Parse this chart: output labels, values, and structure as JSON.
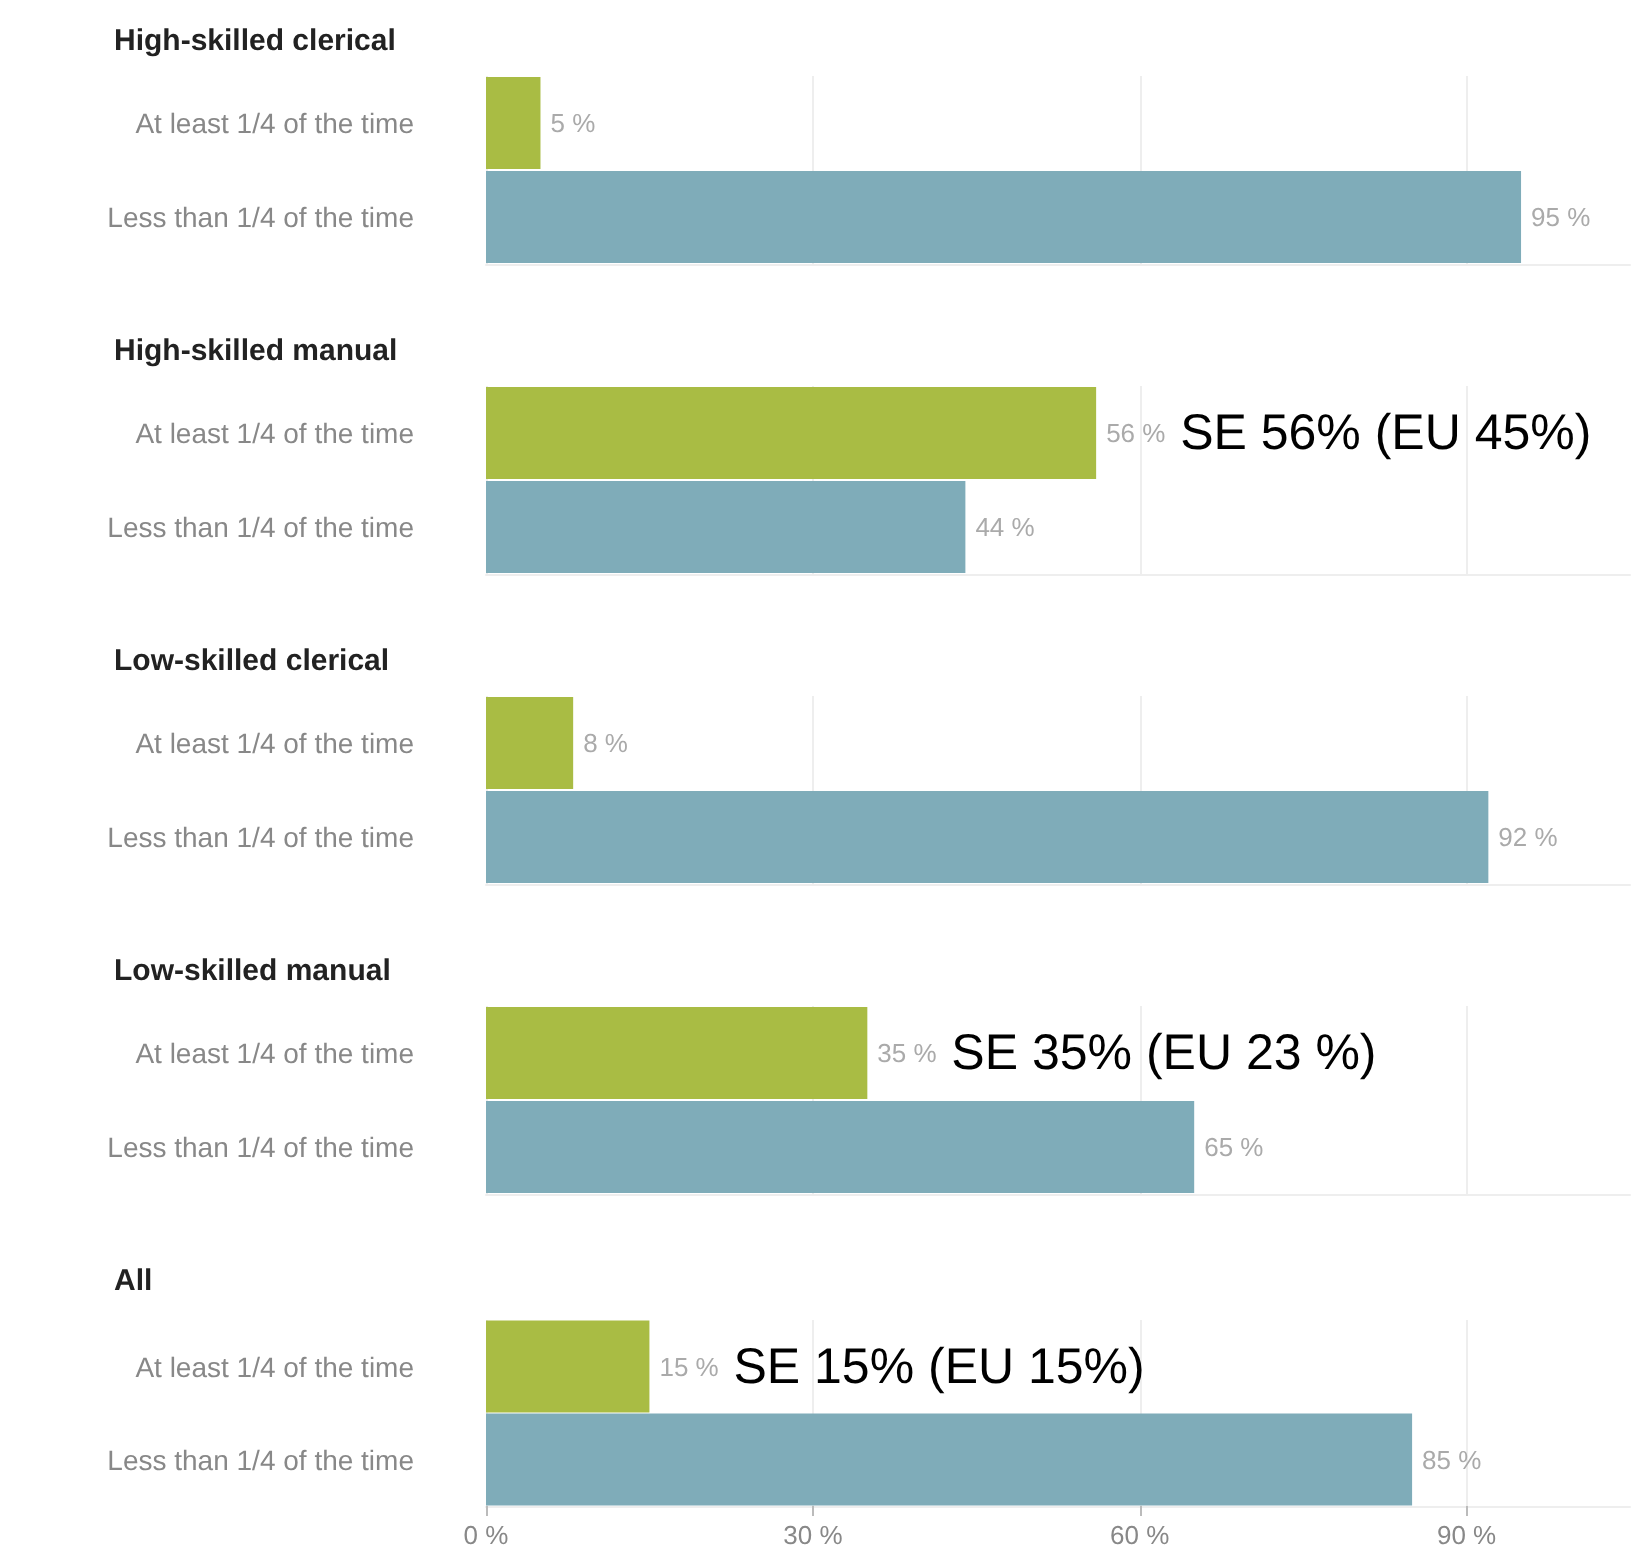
{
  "chart_data": [
    {
      "type": "bar",
      "orientation": "horizontal",
      "title": "High-skilled clerical",
      "categories": [
        "At least 1/4 of the time",
        "Less than 1/4 of the time"
      ],
      "values": [
        5,
        95
      ],
      "colors": [
        "#a9bc44",
        "#7facb9"
      ],
      "value_labels": [
        "5 %",
        "95 %"
      ],
      "xlim": [
        0,
        105
      ],
      "xticks": [
        {
          "value": 0,
          "label": null
        },
        {
          "value": 30,
          "label": null
        },
        {
          "value": 60,
          "label": null
        },
        {
          "value": 90,
          "label": null
        }
      ],
      "grid": "x",
      "tick_labels": "y"
    },
    {
      "type": "bar",
      "orientation": "horizontal",
      "title": "High-skilled manual",
      "categories": [
        "At least 1/4 of the time",
        "Less than 1/4 of the time"
      ],
      "values": [
        56,
        44
      ],
      "colors": [
        "#a9bc44",
        "#7facb9"
      ],
      "value_labels": [
        "56 %",
        "44 %"
      ],
      "xlim": [
        0,
        105
      ],
      "xticks": [
        {
          "value": 0,
          "label": null
        },
        {
          "value": 30,
          "label": null
        },
        {
          "value": 60,
          "label": null
        },
        {
          "value": 90,
          "label": null
        }
      ],
      "grid": "x",
      "tick_labels": "y",
      "annotations": [
        {
          "text": "SE 56% (EU 45%)",
          "x": 56,
          "y": "At least 1/4 of the time"
        }
      ]
    },
    {
      "type": "bar",
      "orientation": "horizontal",
      "title": "Low-skilled clerical",
      "categories": [
        "At least 1/4 of the time",
        "Less than 1/4 of the time"
      ],
      "values": [
        8,
        92
      ],
      "colors": [
        "#a9bc44",
        "#7facb9"
      ],
      "value_labels": [
        "8 %",
        "92 %"
      ],
      "xlim": [
        0,
        105
      ],
      "xticks": [
        {
          "value": 0,
          "label": null
        },
        {
          "value": 30,
          "label": null
        },
        {
          "value": 60,
          "label": null
        },
        {
          "value": 90,
          "label": null
        }
      ],
      "grid": "x",
      "tick_labels": "y"
    },
    {
      "type": "bar",
      "orientation": "horizontal",
      "title": "Low-skilled manual",
      "categories": [
        "At least 1/4 of the time",
        "Less than 1/4 of the time"
      ],
      "values": [
        35,
        65
      ],
      "colors": [
        "#a9bc44",
        "#7facb9"
      ],
      "value_labels": [
        "35 %",
        "65 %"
      ],
      "xlim": [
        0,
        105
      ],
      "xticks": [
        {
          "value": 0,
          "label": null
        },
        {
          "value": 30,
          "label": null
        },
        {
          "value": 60,
          "label": null
        },
        {
          "value": 90,
          "label": null
        }
      ],
      "grid": "x",
      "tick_labels": "y",
      "annotations": [
        {
          "text": "SE 35% (EU 23 %)",
          "x": 35,
          "y": "At least 1/4 of the time"
        }
      ]
    },
    {
      "type": "bar",
      "orientation": "horizontal",
      "title": "All",
      "categories": [
        "At least 1/4 of the time",
        "Less than 1/4 of the time"
      ],
      "values": [
        15,
        85
      ],
      "colors": [
        "#a9bc44",
        "#7facb9"
      ],
      "value_labels": [
        "15 %",
        "85 %"
      ],
      "xlim": [
        0,
        105
      ],
      "xticks": [
        {
          "value": 0,
          "label": "0 %"
        },
        {
          "value": 30,
          "label": "30 %"
        },
        {
          "value": 60,
          "label": "60 %"
        },
        {
          "value": 90,
          "label": "90 %"
        }
      ],
      "grid": "x",
      "annotations": [
        {
          "text": "SE 15% (EU 15%)",
          "x": 15,
          "y": "At least 1/4 of the time"
        }
      ]
    }
  ]
}
